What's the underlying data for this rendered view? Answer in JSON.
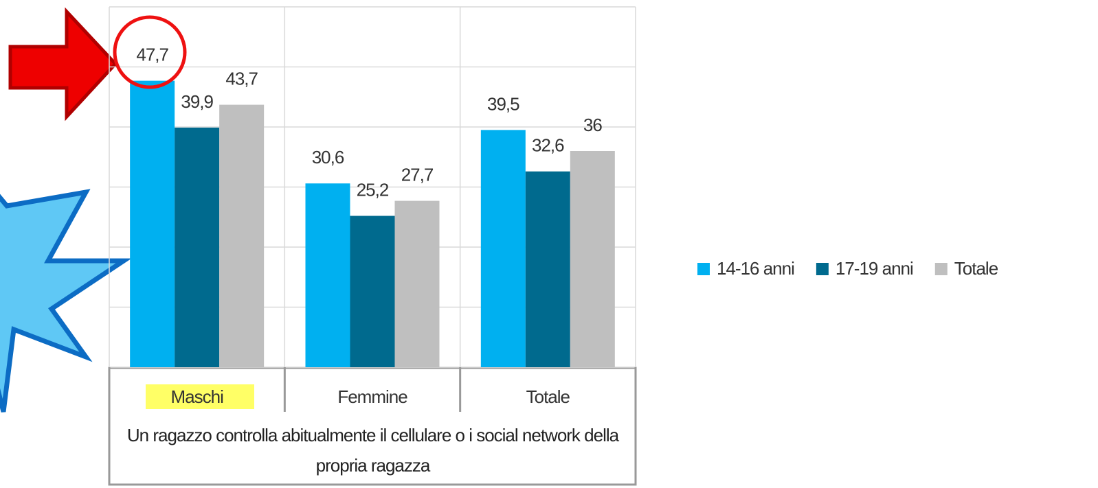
{
  "chart_data": {
    "type": "bar",
    "categories": [
      "Maschi",
      "Femmine",
      "Totale"
    ],
    "series": [
      {
        "name": "14-16 anni",
        "color": "#00b0f0",
        "values": [
          47.7,
          30.6,
          39.5
        ],
        "value_labels": [
          "47,7",
          "30,6",
          "39,5"
        ]
      },
      {
        "name": "17-19 anni",
        "color": "#006a8e",
        "values": [
          39.9,
          25.2,
          32.6
        ],
        "value_labels": [
          "39,9",
          "25,2",
          "32,6"
        ]
      },
      {
        "name": "Totale",
        "color": "#bfbfbf",
        "values": [
          43.7,
          27.7,
          36
        ],
        "value_labels": [
          "43,7",
          "27,7",
          "36"
        ]
      }
    ],
    "x_label": "Un ragazzo controlla abitualmente il cellulare o i social network della propria ragazza",
    "ylim": [
      0,
      60
    ],
    "yticks": [
      0,
      10,
      20,
      30,
      40,
      50,
      60
    ],
    "grid": true,
    "legend": "right"
  }
}
